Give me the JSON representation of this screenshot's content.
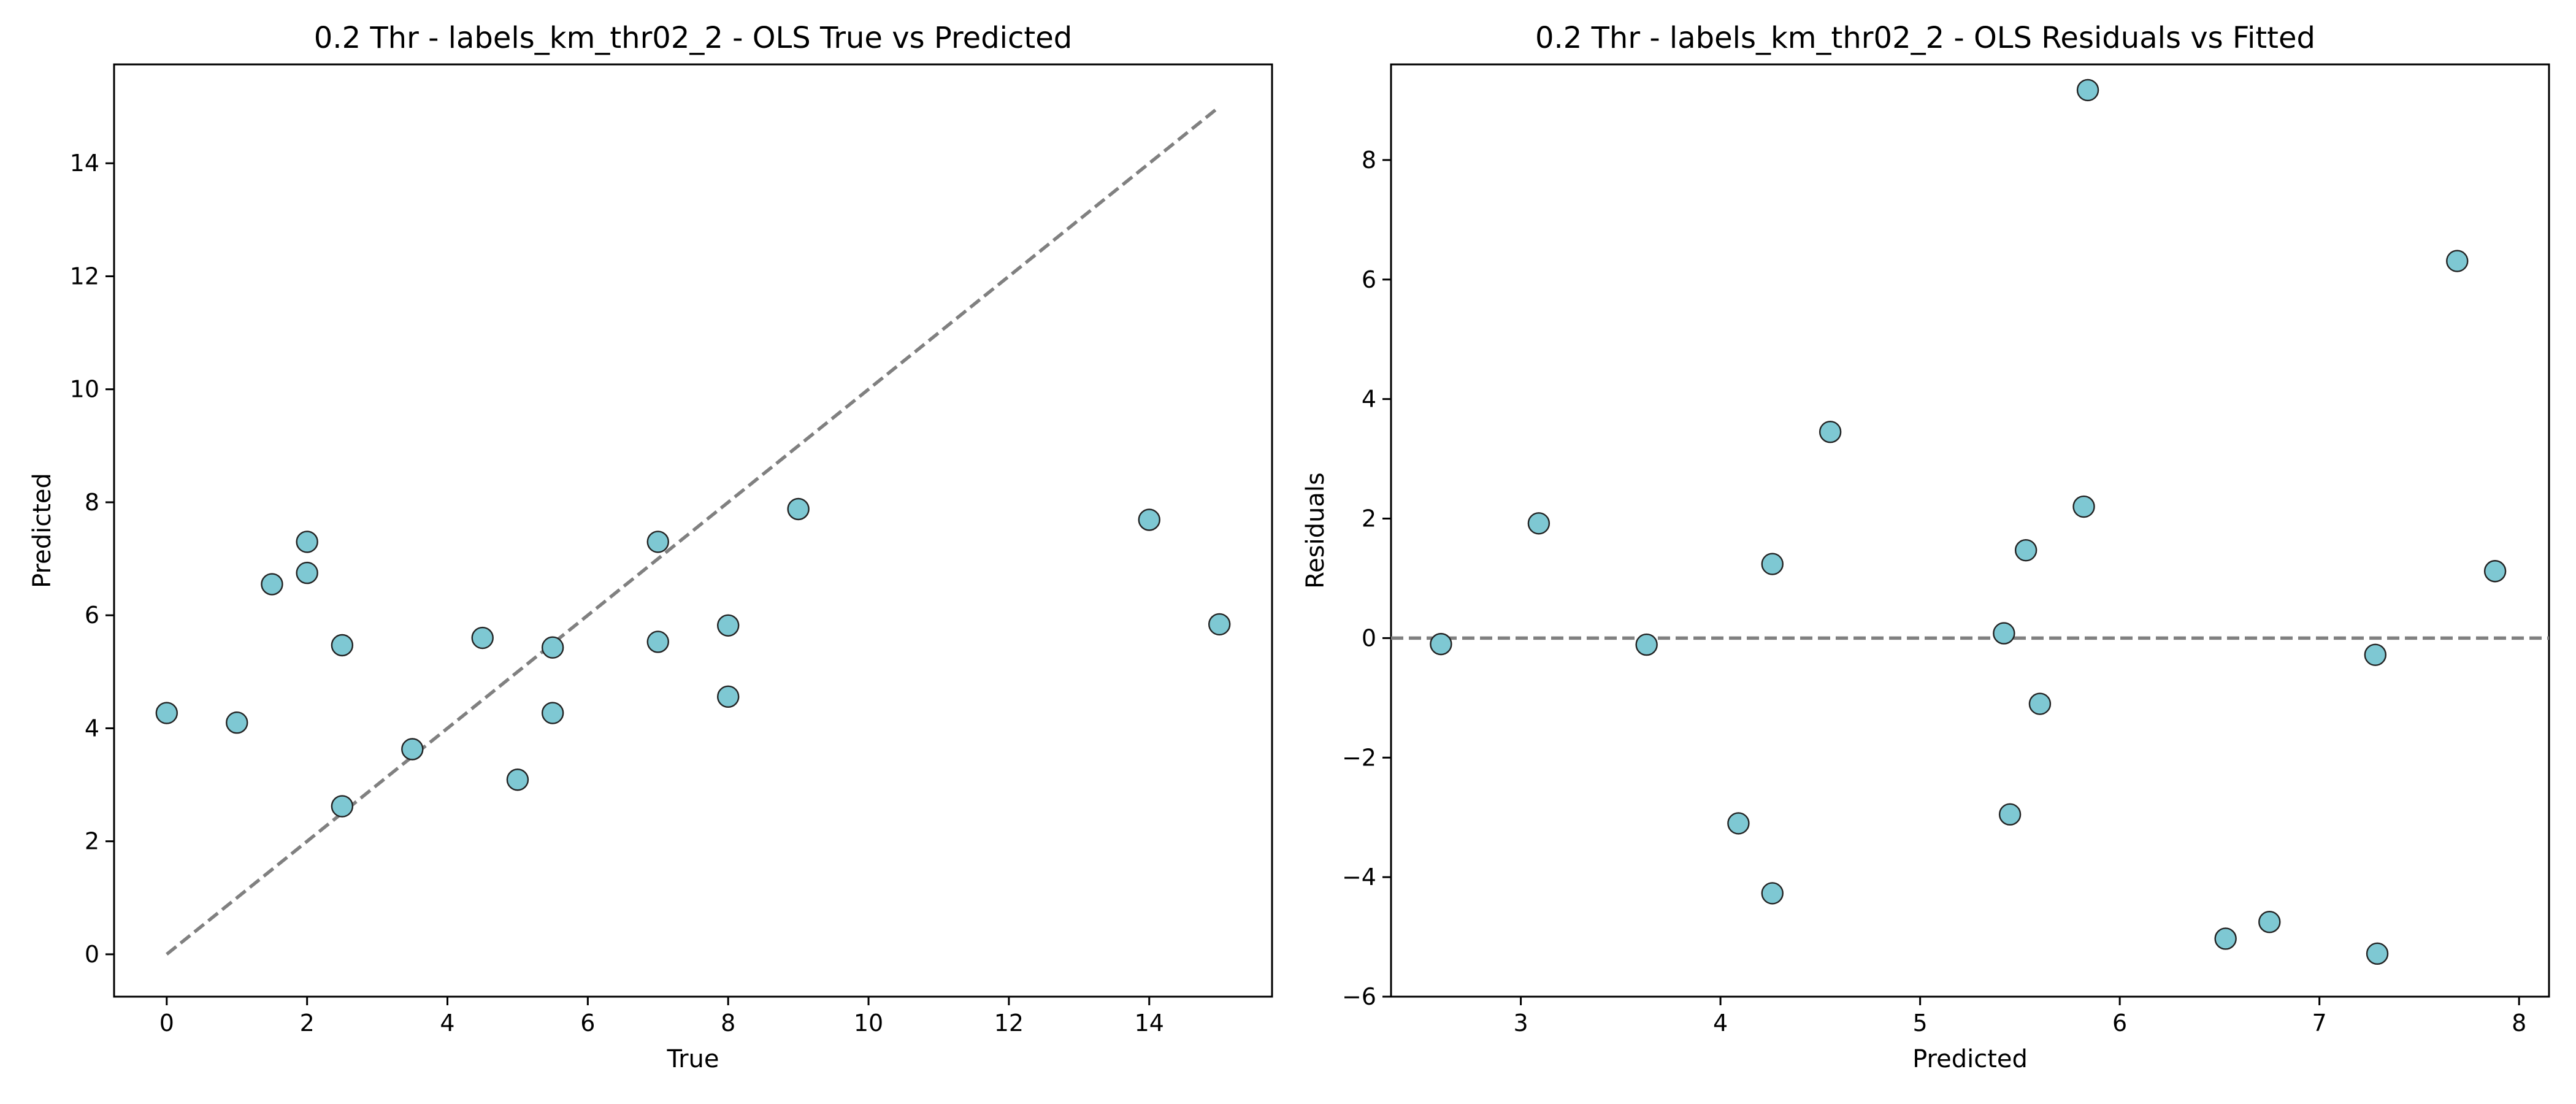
{
  "chart_data": [
    {
      "type": "scatter",
      "title": "0.2 Thr - labels_km_thr02_2 - OLS True vs Predicted",
      "xlabel": "True",
      "ylabel": "Predicted",
      "xlim": [
        -0.75,
        15.75
      ],
      "ylim": [
        -0.75,
        15.75
      ],
      "xticks": [
        0,
        2,
        4,
        6,
        8,
        10,
        12,
        14
      ],
      "yticks": [
        0,
        2,
        4,
        6,
        8,
        10,
        12,
        14
      ],
      "grid": false,
      "marker_color": "#7ec8d3",
      "reference_line": {
        "style": "dashed",
        "color": "#808080",
        "x": [
          0,
          15
        ],
        "y": [
          0,
          15
        ]
      },
      "points": [
        {
          "x": 0,
          "y": 4.27
        },
        {
          "x": 1,
          "y": 4.1
        },
        {
          "x": 1.5,
          "y": 6.55
        },
        {
          "x": 2,
          "y": 7.3
        },
        {
          "x": 2,
          "y": 6.75
        },
        {
          "x": 2.5,
          "y": 5.47
        },
        {
          "x": 2.5,
          "y": 2.62
        },
        {
          "x": 3.5,
          "y": 3.63
        },
        {
          "x": 4.5,
          "y": 5.6
        },
        {
          "x": 5,
          "y": 3.09
        },
        {
          "x": 5.5,
          "y": 5.43
        },
        {
          "x": 5.5,
          "y": 4.27
        },
        {
          "x": 7,
          "y": 7.3
        },
        {
          "x": 7,
          "y": 5.53
        },
        {
          "x": 8,
          "y": 5.82
        },
        {
          "x": 8,
          "y": 4.56
        },
        {
          "x": 9,
          "y": 7.88
        },
        {
          "x": 14,
          "y": 7.69
        },
        {
          "x": 15,
          "y": 5.84
        }
      ]
    },
    {
      "type": "scatter",
      "title": "0.2 Thr - labels_km_thr02_2 - OLS Residuals vs Fitted",
      "xlabel": "Predicted",
      "ylabel": "Residuals",
      "xlim": [
        2.35,
        8.15
      ],
      "ylim": [
        -6,
        9.6
      ],
      "xticks": [
        3,
        4,
        5,
        6,
        7,
        8
      ],
      "yticks": [
        -6,
        -4,
        -2,
        0,
        2,
        4,
        6,
        8
      ],
      "grid": false,
      "marker_color": "#7ec8d3",
      "reference_line": {
        "style": "dashed",
        "color": "#808080",
        "y": 0
      },
      "points": [
        {
          "x": 2.6,
          "y": -0.1
        },
        {
          "x": 3.09,
          "y": 1.92
        },
        {
          "x": 3.63,
          "y": -0.11
        },
        {
          "x": 4.09,
          "y": -3.1
        },
        {
          "x": 4.26,
          "y": 1.24
        },
        {
          "x": 4.26,
          "y": -4.27
        },
        {
          "x": 4.55,
          "y": 3.45
        },
        {
          "x": 5.42,
          "y": 0.08
        },
        {
          "x": 5.45,
          "y": -2.95
        },
        {
          "x": 5.53,
          "y": 1.47
        },
        {
          "x": 5.6,
          "y": -1.1
        },
        {
          "x": 5.82,
          "y": 2.2
        },
        {
          "x": 5.84,
          "y": 9.17
        },
        {
          "x": 6.53,
          "y": -5.03
        },
        {
          "x": 6.75,
          "y": -4.75
        },
        {
          "x": 7.28,
          "y": -0.28
        },
        {
          "x": 7.29,
          "y": -5.28
        },
        {
          "x": 7.69,
          "y": 6.31
        },
        {
          "x": 7.88,
          "y": 1.12
        }
      ]
    }
  ]
}
